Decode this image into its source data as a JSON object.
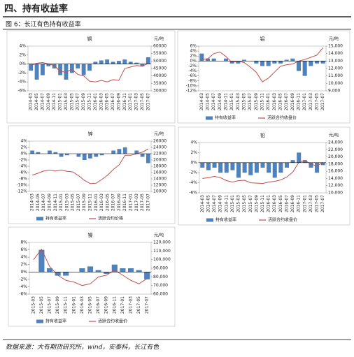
{
  "header": {
    "title": "四、持有收益率",
    "caption": "图 6：长江有色持有收益率",
    "source": "数据来源：大有期货研究所，wind，安泰科，长江有色"
  },
  "chart_data": [
    {
      "type": "bar-line",
      "title": "铜",
      "y2_label": "元/吨",
      "categories": [
        "2014-03",
        "2014-05",
        "2014-07",
        "2014-09",
        "2014-11",
        "2015-01",
        "2015-03",
        "2015-05",
        "2015-07",
        "2015-09",
        "2015-11",
        "2016-01",
        "2016-03",
        "2016-05",
        "2016-07",
        "2016-09",
        "2016-11",
        "2017-01",
        "2017-03",
        "2017-05",
        "2017-07"
      ],
      "series": [
        {
          "type": "bar",
          "color": "#4f81bd",
          "values": [
            -1.5,
            -3.5,
            -2.5,
            -0.5,
            -1,
            -2.5,
            -3.5,
            -2,
            -1,
            -2.5,
            -1.5,
            0.5,
            0.8,
            1,
            0.5,
            0.7,
            1,
            0.5,
            0.3,
            -0.5,
            1.5
          ]
        },
        {
          "type": "line",
          "axis": "y2",
          "color": "#c0504d",
          "values": [
            47000,
            48500,
            49000,
            48000,
            47000,
            43000,
            42500,
            44500,
            41000,
            40000,
            36500,
            36000,
            37000,
            36000,
            37500,
            37000,
            45000,
            46000,
            47000,
            46500,
            48500
          ]
        }
      ],
      "ylim": [
        -6,
        4
      ],
      "yticks": [
        {
          "value": 4,
          "label": "4%"
        },
        {
          "value": 2,
          "label": "2%"
        },
        {
          "value": 0,
          "label": "0%"
        },
        {
          "value": -2,
          "label": "-2%"
        },
        {
          "value": -4,
          "label": "-4%"
        },
        {
          "value": -6,
          "label": "-6%"
        }
      ],
      "y2lim": [
        30000,
        60000
      ],
      "y2ticks": [
        60000,
        55000,
        50000,
        45000,
        40000,
        35000,
        30000
      ]
    },
    {
      "type": "bar-line",
      "title": "铝",
      "y2_label": "元/吨",
      "categories": [
        "2014-03",
        "2014-05",
        "2014-07",
        "2014-09",
        "2014-11",
        "2015-01",
        "2015-03",
        "2015-05",
        "2015-07",
        "2015-09",
        "2015-11",
        "2016-01",
        "2016-03",
        "2016-05",
        "2016-07",
        "2016-09",
        "2016-11",
        "2017-01",
        "2017-03",
        "2017-05",
        "2017-07"
      ],
      "series": [
        {
          "name": "持有收益率",
          "type": "bar",
          "color": "#4f81bd",
          "values": [
            3,
            1,
            1,
            0,
            1,
            -1,
            -1,
            0.5,
            0,
            -1,
            -2,
            -2,
            -1,
            -1,
            0.5,
            1,
            -4,
            -6,
            -2,
            -1,
            -1
          ]
        },
        {
          "name": "活跃合约收盘价",
          "type": "line",
          "axis": "y2",
          "color": "#c0504d",
          "values": [
            13200,
            13300,
            14000,
            14200,
            13600,
            12800,
            13000,
            12800,
            12200,
            11500,
            10200,
            10700,
            11500,
            12300,
            12500,
            12600,
            13000,
            13200,
            13500,
            13800,
            14800
          ]
        }
      ],
      "ylim": [
        -12,
        6
      ],
      "yticks": [
        {
          "value": 6,
          "label": "6%"
        },
        {
          "value": 4,
          "label": "4%"
        },
        {
          "value": 2,
          "label": "2%"
        },
        {
          "value": 0,
          "label": "0%"
        },
        {
          "value": -2,
          "label": "-2%"
        },
        {
          "value": -4,
          "label": "-4%"
        },
        {
          "value": -6,
          "label": "-6%"
        },
        {
          "value": -8,
          "label": "-8%"
        },
        {
          "value": -10,
          "label": "-10%"
        },
        {
          "value": -12,
          "label": "-12%"
        }
      ],
      "y2lim": [
        9000,
        15000
      ],
      "y2ticks": [
        {
          "value": 15000,
          "label": "15,000"
        },
        {
          "value": 14000,
          "label": "14,000"
        },
        {
          "value": 13000,
          "label": "13,000"
        },
        {
          "value": 12000,
          "label": "12,000"
        },
        {
          "value": 11000,
          "label": "11,000"
        },
        {
          "value": 10000,
          "label": "10,000"
        },
        {
          "value": 9000,
          "label": "9,000"
        }
      ]
    },
    {
      "type": "bar-line",
      "title": "锌",
      "y2_label": "元/吨",
      "categories": [
        "2014-03",
        "2014-05",
        "2014-07",
        "2014-09",
        "2014-11",
        "2015-01",
        "2015-03",
        "2015-05",
        "2015-07",
        "2015-09",
        "2015-11",
        "2016-01",
        "2016-03",
        "2016-05",
        "2016-07",
        "2016-09",
        "2016-11",
        "2017-01",
        "2017-03",
        "2017-05",
        "2017-07"
      ],
      "series": [
        {
          "name": "持有收益率",
          "type": "bar",
          "color": "#4f81bd",
          "values": [
            1,
            0.5,
            0,
            1,
            0.5,
            -1,
            -0.5,
            0,
            -1,
            -2,
            -1.5,
            -1,
            -0.5,
            0,
            1,
            1.5,
            2,
            0,
            1,
            -1,
            -3
          ]
        },
        {
          "name": "活跃合约价格",
          "type": "line",
          "axis": "y2",
          "color": "#c0504d",
          "values": [
            15200,
            15800,
            16500,
            16800,
            16500,
            16800,
            16400,
            16200,
            15000,
            13500,
            12500,
            12600,
            13800,
            15200,
            17000,
            18500,
            21500,
            21500,
            22000,
            22500,
            23500
          ]
        }
      ],
      "ylim": [
        -12,
        4
      ],
      "yticks": [
        {
          "value": 4,
          "label": "4%"
        },
        {
          "value": 2,
          "label": "2%"
        },
        {
          "value": 0,
          "label": "0%"
        },
        {
          "value": -2,
          "label": "-2%"
        },
        {
          "value": -4,
          "label": "-4%"
        },
        {
          "value": -6,
          "label": "-6%"
        },
        {
          "value": -8,
          "label": "-8%"
        },
        {
          "value": -10,
          "label": "-10%"
        },
        {
          "value": -12,
          "label": "-12%"
        }
      ],
      "y2lim": [
        10000,
        26000
      ],
      "y2ticks": [
        26000,
        24000,
        22000,
        20000,
        18000,
        16000,
        14000,
        12000,
        10000
      ]
    },
    {
      "type": "bar-line",
      "title": "铅",
      "y2_label": "元/吨",
      "categories": [
        "2014-03",
        "2014-05",
        "2014-07",
        "2014-09",
        "2014-11",
        "2015-01",
        "2015-03",
        "2015-05",
        "2015-07",
        "2015-09",
        "2015-11",
        "2016-01",
        "2016-03",
        "2016-05",
        "2016-07",
        "2016-09",
        "2016-11",
        "2017-01",
        "2017-03",
        "2017-05",
        "2017-07"
      ],
      "series": [
        {
          "name": "持有收益率",
          "type": "bar",
          "color": "#4f81bd",
          "values": [
            -1,
            -1.5,
            -1,
            -2,
            -2,
            -1.5,
            -3,
            -2,
            -2.5,
            -2,
            -1,
            -2,
            -3,
            -2,
            -1,
            0.5,
            2,
            0.5,
            -1,
            -2,
            -0.5
          ]
        },
        {
          "name": "活跃合约收盘价",
          "type": "line",
          "axis": "y2",
          "color": "#c0504d",
          "values": [
            14000,
            14200,
            14600,
            14200,
            13400,
            13000,
            13400,
            13500,
            12800,
            12700,
            12600,
            13000,
            13200,
            13600,
            14400,
            15800,
            18500,
            19000,
            18000,
            17500,
            18500
          ]
        }
      ],
      "ylim": [
        -6,
        4
      ],
      "yticks": [
        {
          "value": 4,
          "label": "4%"
        },
        {
          "value": 2,
          "label": "2%"
        },
        {
          "value": 0,
          "label": "0%"
        },
        {
          "value": -2,
          "label": "-2%"
        },
        {
          "value": -4,
          "label": "-4%"
        },
        {
          "value": -6,
          "label": "-6%"
        }
      ],
      "y2lim": [
        10000,
        24000
      ],
      "y2ticks": [
        {
          "value": 24000,
          "label": "24,000"
        },
        {
          "value": 22000,
          "label": "22,000"
        },
        {
          "value": 20000,
          "label": "20,000"
        },
        {
          "value": 18000,
          "label": "18,000"
        },
        {
          "value": 16000,
          "label": "16,000"
        },
        {
          "value": 14000,
          "label": "14,000"
        },
        {
          "value": 12000,
          "label": "12,000"
        },
        {
          "value": 10000,
          "label": "10,000"
        }
      ]
    },
    {
      "type": "bar-line",
      "title": "镍",
      "y2_label": "元/吨",
      "categories": [
        "2015-03",
        "2015-05",
        "2015-07",
        "2015-09",
        "2015-11",
        "2016-01",
        "2016-03",
        "2016-05",
        "2016-07",
        "2016-09",
        "2016-11",
        "2017-01",
        "2017-03",
        "2017-05",
        "2017-07"
      ],
      "series": [
        {
          "name": "持有收益率",
          "type": "bar",
          "color": "#4f81bd",
          "values": [
            0,
            6,
            1,
            -1,
            -1,
            0,
            1,
            1.5,
            0.5,
            -0.5,
            2,
            1,
            1,
            0.5,
            -2
          ]
        },
        {
          "name": "活跃合约收盘价",
          "type": "line",
          "axis": "y2",
          "color": "#c0504d",
          "values": [
            100000,
            112000,
            92000,
            82000,
            76000,
            74000,
            70000,
            72000,
            80000,
            82000,
            88000,
            82000,
            76000,
            72000,
            78000
          ]
        }
      ],
      "ylim": [
        -6,
        8
      ],
      "yticks": [
        {
          "value": 8,
          "label": "8%"
        },
        {
          "value": 6,
          "label": "6%"
        },
        {
          "value": 4,
          "label": "4%"
        },
        {
          "value": 2,
          "label": "2%"
        },
        {
          "value": 0,
          "label": "0%"
        },
        {
          "value": -2,
          "label": "-2%"
        },
        {
          "value": -4,
          "label": "-4%"
        },
        {
          "value": -6,
          "label": "-6%"
        }
      ],
      "y2lim": [
        60000,
        120000
      ],
      "y2ticks": [
        {
          "value": 120000,
          "label": "120,000"
        },
        {
          "value": 110000,
          "label": "110,000"
        },
        {
          "value": 100000,
          "label": "100,000"
        },
        {
          "value": 90000,
          "label": "90,000"
        },
        {
          "value": 80000,
          "label": "80,000"
        },
        {
          "value": 70000,
          "label": "70,000"
        },
        {
          "value": 60000,
          "label": "60,000"
        }
      ]
    }
  ]
}
